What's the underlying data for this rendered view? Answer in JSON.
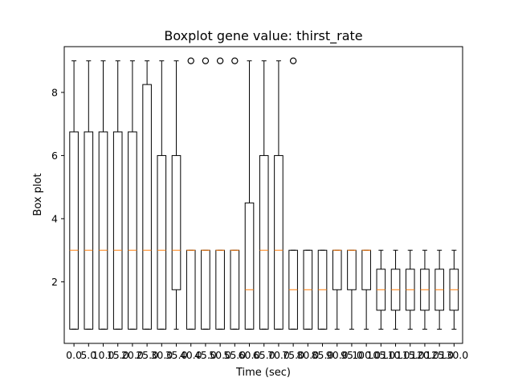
{
  "chart_data": {
    "type": "boxplot",
    "title": "Boxplot gene value: thirst_rate",
    "xlabel": "Time (sec)",
    "ylabel": "Box plot",
    "ylim": [
      0.05,
      9.45
    ],
    "yticks": [
      2,
      4,
      6,
      8
    ],
    "grid": false,
    "categories": [
      "0.0",
      "5.0",
      "10.0",
      "15.0",
      "20.0",
      "25.0",
      "30.0",
      "35.0",
      "40.0",
      "45.0",
      "50.0",
      "55.0",
      "60.0",
      "65.0",
      "70.0",
      "75.0",
      "80.0",
      "85.0",
      "90.0",
      "95.0",
      "100.0",
      "105.0",
      "110.0",
      "115.0",
      "120.0",
      "125.0",
      "130.0"
    ],
    "xtick_labels_display": [
      "0.0",
      "5.0",
      "10.0",
      "15.0",
      "20.0",
      "25.0",
      "30.0",
      "35.0",
      "40.0",
      "45.0",
      "50.0",
      "55.0",
      "60.0",
      "65.0",
      "70.0",
      "75.0",
      "80.0",
      "85.0",
      "90.0",
      "95.0",
      "100.0",
      "105.0",
      "110.0",
      "115.0",
      "120.0",
      "125.0",
      "130.0"
    ],
    "series": [
      {
        "boxes": [
          {
            "whislo": 0.5,
            "q1": 0.5,
            "med": 3.0,
            "q3": 6.75,
            "whishi": 9.0,
            "fliers": []
          },
          {
            "whislo": 0.5,
            "q1": 0.5,
            "med": 3.0,
            "q3": 6.75,
            "whishi": 9.0,
            "fliers": []
          },
          {
            "whislo": 0.5,
            "q1": 0.5,
            "med": 3.0,
            "q3": 6.75,
            "whishi": 9.0,
            "fliers": []
          },
          {
            "whislo": 0.5,
            "q1": 0.5,
            "med": 3.0,
            "q3": 6.75,
            "whishi": 9.0,
            "fliers": []
          },
          {
            "whislo": 0.5,
            "q1": 0.5,
            "med": 3.0,
            "q3": 6.75,
            "whishi": 9.0,
            "fliers": []
          },
          {
            "whislo": 0.5,
            "q1": 0.5,
            "med": 3.0,
            "q3": 8.25,
            "whishi": 9.0,
            "fliers": []
          },
          {
            "whislo": 0.5,
            "q1": 0.5,
            "med": 3.0,
            "q3": 6.0,
            "whishi": 9.0,
            "fliers": []
          },
          {
            "whislo": 0.5,
            "q1": 1.75,
            "med": 3.0,
            "q3": 6.0,
            "whishi": 9.0,
            "fliers": []
          },
          {
            "whislo": 0.5,
            "q1": 0.5,
            "med": 3.0,
            "q3": 3.0,
            "whishi": 3.0,
            "fliers": [
              9.0
            ]
          },
          {
            "whislo": 0.5,
            "q1": 0.5,
            "med": 3.0,
            "q3": 3.0,
            "whishi": 3.0,
            "fliers": [
              9.0
            ]
          },
          {
            "whislo": 0.5,
            "q1": 0.5,
            "med": 3.0,
            "q3": 3.0,
            "whishi": 3.0,
            "fliers": [
              9.0
            ]
          },
          {
            "whislo": 0.5,
            "q1": 0.5,
            "med": 3.0,
            "q3": 3.0,
            "whishi": 3.0,
            "fliers": [
              9.0
            ]
          },
          {
            "whislo": 0.5,
            "q1": 0.5,
            "med": 1.75,
            "q3": 4.5,
            "whishi": 9.0,
            "fliers": []
          },
          {
            "whislo": 0.5,
            "q1": 0.5,
            "med": 3.0,
            "q3": 6.0,
            "whishi": 9.0,
            "fliers": []
          },
          {
            "whislo": 0.5,
            "q1": 0.5,
            "med": 3.0,
            "q3": 6.0,
            "whishi": 9.0,
            "fliers": []
          },
          {
            "whislo": 0.5,
            "q1": 0.5,
            "med": 1.75,
            "q3": 3.0,
            "whishi": 3.0,
            "fliers": [
              9.0
            ]
          },
          {
            "whislo": 0.5,
            "q1": 0.5,
            "med": 1.75,
            "q3": 3.0,
            "whishi": 3.0,
            "fliers": []
          },
          {
            "whislo": 0.5,
            "q1": 0.5,
            "med": 1.75,
            "q3": 3.0,
            "whishi": 3.0,
            "fliers": []
          },
          {
            "whislo": 0.5,
            "q1": 1.75,
            "med": 3.0,
            "q3": 3.0,
            "whishi": 3.0,
            "fliers": []
          },
          {
            "whislo": 0.5,
            "q1": 1.75,
            "med": 3.0,
            "q3": 3.0,
            "whishi": 3.0,
            "fliers": []
          },
          {
            "whislo": 0.5,
            "q1": 1.75,
            "med": 3.0,
            "q3": 3.0,
            "whishi": 3.0,
            "fliers": []
          },
          {
            "whislo": 0.5,
            "q1": 1.1,
            "med": 1.75,
            "q3": 2.4,
            "whishi": 3.0,
            "fliers": []
          },
          {
            "whislo": 0.5,
            "q1": 1.1,
            "med": 1.75,
            "q3": 2.4,
            "whishi": 3.0,
            "fliers": []
          },
          {
            "whislo": 0.5,
            "q1": 1.1,
            "med": 1.75,
            "q3": 2.4,
            "whishi": 3.0,
            "fliers": []
          },
          {
            "whislo": 0.5,
            "q1": 1.1,
            "med": 1.75,
            "q3": 2.4,
            "whishi": 3.0,
            "fliers": []
          },
          {
            "whislo": 0.5,
            "q1": 1.1,
            "med": 1.75,
            "q3": 2.4,
            "whishi": 3.0,
            "fliers": []
          },
          {
            "whislo": 0.5,
            "q1": 1.1,
            "med": 1.75,
            "q3": 2.4,
            "whishi": 3.0,
            "fliers": []
          }
        ]
      }
    ],
    "colors": {
      "box": "#000000",
      "median": "#ff7f0e",
      "flier": "#000000",
      "axes": "#000000"
    }
  }
}
